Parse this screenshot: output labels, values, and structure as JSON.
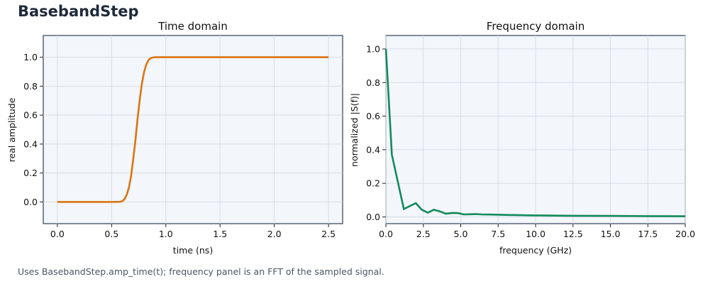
{
  "header": {
    "title": "BasebandStep"
  },
  "caption": "Uses BasebandStep.amp_time(t); frequency panel is an FFT of the sampled signal.",
  "chart_data": [
    {
      "type": "line",
      "title": "Time domain",
      "xlabel": "time (ns)",
      "ylabel": "real amplitude",
      "xlim": [
        -0.13,
        2.63
      ],
      "ylim": [
        -0.15,
        1.15
      ],
      "xticks": [
        0.0,
        0.5,
        1.0,
        1.5,
        2.0,
        2.5
      ],
      "xtick_labels": [
        "0.0",
        "0.5",
        "1.0",
        "1.5",
        "2.0",
        "2.5"
      ],
      "yticks": [
        0.0,
        0.2,
        0.4,
        0.6,
        0.8,
        1.0
      ],
      "ytick_labels": [
        "0.0",
        "0.2",
        "0.4",
        "0.6",
        "0.8",
        "1.0"
      ],
      "grid": true,
      "color": "#d97512",
      "series": [
        {
          "x": [
            0.0,
            0.5,
            0.58,
            0.6,
            0.62,
            0.64,
            0.66,
            0.68,
            0.7,
            0.72,
            0.74,
            0.76,
            0.78,
            0.8,
            0.82,
            0.84,
            0.86,
            0.88,
            0.9,
            0.92,
            0.94,
            1.0,
            1.5,
            2.0,
            2.5
          ],
          "y": [
            0.0,
            0.0,
            0.001,
            0.006,
            0.02,
            0.05,
            0.1,
            0.18,
            0.3,
            0.43,
            0.58,
            0.71,
            0.82,
            0.9,
            0.95,
            0.98,
            0.993,
            0.998,
            1.0,
            1.0,
            1.0,
            1.0,
            1.0,
            1.0,
            1.0
          ]
        }
      ]
    },
    {
      "type": "line",
      "title": "Frequency domain",
      "xlabel": "frequency (GHz)",
      "ylabel": "normalized |S(f)|",
      "xlim": [
        0,
        20
      ],
      "ylim": [
        -0.04,
        1.08
      ],
      "xticks": [
        0.0,
        2.5,
        5.0,
        7.5,
        10.0,
        12.5,
        15.0,
        17.5,
        20.0
      ],
      "xtick_labels": [
        "0.0",
        "2.5",
        "5.0",
        "7.5",
        "10.0",
        "12.5",
        "15.0",
        "17.5",
        "20.0"
      ],
      "yticks": [
        0.0,
        0.2,
        0.4,
        0.6,
        0.8,
        1.0
      ],
      "ytick_labels": [
        "0.0",
        "0.2",
        "0.4",
        "0.6",
        "0.8",
        "1.0"
      ],
      "grid": true,
      "color": "#128a5c",
      "series": [
        {
          "x": [
            0.0,
            0.4,
            1.2,
            2.0,
            2.4,
            2.8,
            3.2,
            3.6,
            4.0,
            4.4,
            4.8,
            5.2,
            5.6,
            6.0,
            6.4,
            7.0,
            8.0,
            10.0,
            12.5,
            15.0,
            17.5,
            20.0
          ],
          "y": [
            1.0,
            0.37,
            0.047,
            0.082,
            0.043,
            0.025,
            0.043,
            0.033,
            0.019,
            0.024,
            0.023,
            0.015,
            0.016,
            0.017,
            0.015,
            0.014,
            0.012,
            0.009,
            0.007,
            0.006,
            0.005,
            0.004
          ]
        }
      ]
    }
  ]
}
